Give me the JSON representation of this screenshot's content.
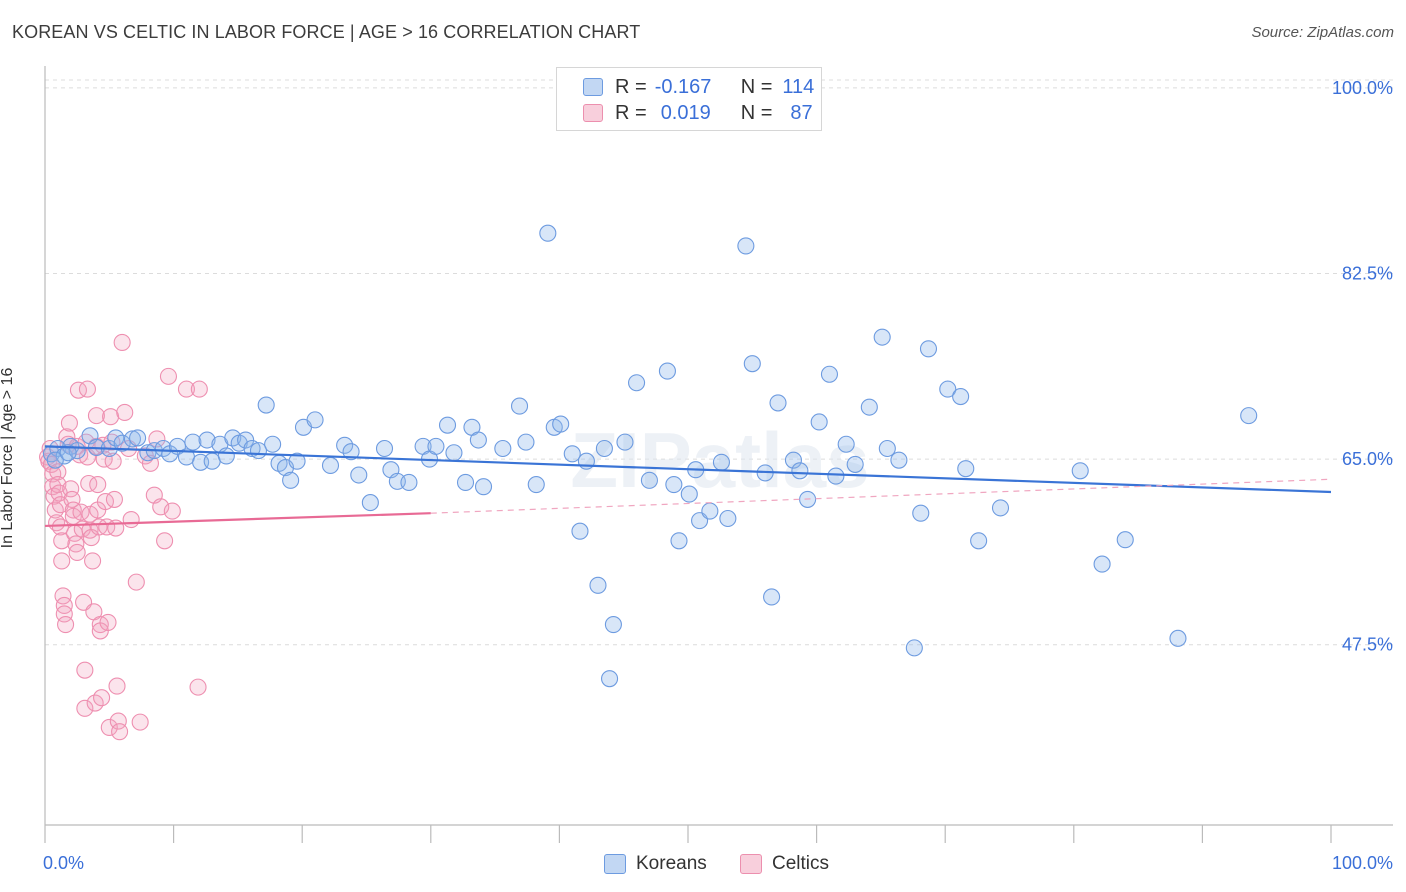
{
  "title": "KOREAN VS CELTIC IN LABOR FORCE | AGE > 16 CORRELATION CHART",
  "source": "Source: ZipAtlas.com",
  "watermark": "ZIPatlas",
  "legend": {
    "rows": [
      {
        "r_label": "R =",
        "r_value": "-0.167",
        "n_label": "N =",
        "n_value": "114",
        "color": "#8fb6ea"
      },
      {
        "r_label": "R =",
        "r_value": "0.019",
        "n_label": "N =",
        "n_value": "87",
        "color": "#f2a7c0"
      }
    ]
  },
  "bottom_legend": [
    {
      "label": "Koreans",
      "color": "#8fb6ea"
    },
    {
      "label": "Celtics",
      "color": "#f2a7c0"
    }
  ],
  "colors": {
    "korean": "#3a74d6",
    "korean_fill": "rgba(143,182,234,0.35)",
    "celtic": "#e86a95",
    "celtic_fill": "rgba(242,167,192,0.30)",
    "tick_label": "#3a6fd8"
  },
  "chart_data": {
    "type": "scatter",
    "title": "KOREAN VS CELTIC IN LABOR FORCE | AGE > 16 CORRELATION CHART",
    "xlabel": "",
    "ylabel": "In Labor Force | Age > 16",
    "x_tick_labels": [
      "0.0%",
      "100.0%"
    ],
    "y_tick_labels": [
      "47.5%",
      "65.0%",
      "82.5%",
      "100.0%"
    ],
    "y_ticks": [
      47.5,
      65.0,
      82.5,
      100.0
    ],
    "xlim": [
      0,
      100
    ],
    "ylim": [
      30.5,
      101.5
    ],
    "grid": true,
    "legend_position": "top-center",
    "series": [
      {
        "name": "Koreans",
        "r": -0.167,
        "n": 114,
        "trend": {
          "x0": 0,
          "y0": 66.2,
          "x1": 100,
          "y1": 61.9
        },
        "points": [
          [
            0.5,
            65.5
          ],
          [
            1.0,
            66.0
          ],
          [
            1.5,
            65.3
          ],
          [
            2.0,
            66.2
          ],
          [
            2.5,
            65.8
          ],
          [
            3.5,
            67.2
          ],
          [
            4.0,
            66.1
          ],
          [
            5.0,
            66.0
          ],
          [
            5.5,
            67.0
          ],
          [
            6.0,
            66.5
          ],
          [
            6.8,
            66.9
          ],
          [
            7.2,
            67.0
          ],
          [
            8.0,
            65.6
          ],
          [
            8.5,
            65.8
          ],
          [
            9.2,
            66.0
          ],
          [
            9.7,
            65.5
          ],
          [
            10.3,
            66.2
          ],
          [
            11.0,
            65.2
          ],
          [
            11.5,
            66.6
          ],
          [
            12.1,
            64.7
          ],
          [
            12.6,
            66.8
          ],
          [
            13.0,
            64.8
          ],
          [
            13.6,
            66.4
          ],
          [
            14.1,
            65.3
          ],
          [
            14.6,
            67.0
          ],
          [
            15.1,
            66.5
          ],
          [
            15.6,
            66.8
          ],
          [
            16.1,
            66.0
          ],
          [
            16.6,
            65.8
          ],
          [
            17.2,
            70.1
          ],
          [
            17.7,
            66.4
          ],
          [
            18.2,
            64.6
          ],
          [
            18.7,
            64.2
          ],
          [
            19.1,
            63.0
          ],
          [
            19.6,
            64.8
          ],
          [
            20.1,
            68.0
          ],
          [
            21.0,
            68.7
          ],
          [
            22.2,
            64.4
          ],
          [
            23.3,
            66.3
          ],
          [
            23.8,
            65.7
          ],
          [
            24.4,
            63.5
          ],
          [
            25.3,
            60.9
          ],
          [
            26.4,
            66.0
          ],
          [
            26.9,
            64.0
          ],
          [
            27.4,
            62.9
          ],
          [
            28.3,
            62.8
          ],
          [
            29.4,
            66.2
          ],
          [
            29.9,
            65.0
          ],
          [
            30.4,
            66.2
          ],
          [
            31.3,
            68.2
          ],
          [
            31.8,
            65.6
          ],
          [
            32.7,
            62.8
          ],
          [
            33.2,
            68.0
          ],
          [
            33.7,
            66.8
          ],
          [
            34.1,
            62.4
          ],
          [
            35.6,
            66.0
          ],
          [
            36.9,
            70.0
          ],
          [
            37.4,
            66.6
          ],
          [
            38.2,
            62.6
          ],
          [
            39.1,
            86.3
          ],
          [
            39.6,
            68.0
          ],
          [
            40.1,
            68.3
          ],
          [
            41.0,
            65.5
          ],
          [
            41.6,
            58.2
          ],
          [
            42.1,
            64.8
          ],
          [
            43.0,
            53.1
          ],
          [
            43.5,
            66.0
          ],
          [
            43.9,
            44.3
          ],
          [
            44.2,
            49.4
          ],
          [
            45.1,
            66.6
          ],
          [
            46.0,
            72.2
          ],
          [
            47.0,
            63.0
          ],
          [
            48.4,
            73.3
          ],
          [
            48.9,
            62.6
          ],
          [
            49.3,
            57.3
          ],
          [
            50.1,
            61.7
          ],
          [
            50.6,
            64.0
          ],
          [
            50.9,
            59.2
          ],
          [
            51.7,
            60.1
          ],
          [
            52.6,
            64.7
          ],
          [
            53.1,
            59.4
          ],
          [
            54.5,
            85.1
          ],
          [
            55.0,
            74.0
          ],
          [
            56.0,
            63.7
          ],
          [
            56.5,
            52.0
          ],
          [
            57.0,
            70.3
          ],
          [
            58.2,
            64.9
          ],
          [
            58.7,
            63.9
          ],
          [
            59.3,
            61.2
          ],
          [
            60.2,
            68.5
          ],
          [
            61.0,
            73.0
          ],
          [
            61.5,
            63.4
          ],
          [
            62.3,
            66.4
          ],
          [
            63.0,
            64.5
          ],
          [
            64.1,
            69.9
          ],
          [
            65.1,
            76.5
          ],
          [
            65.5,
            66.0
          ],
          [
            66.4,
            64.9
          ],
          [
            67.6,
            47.2
          ],
          [
            68.1,
            59.9
          ],
          [
            68.7,
            75.4
          ],
          [
            70.2,
            71.6
          ],
          [
            71.2,
            70.9
          ],
          [
            71.6,
            64.1
          ],
          [
            72.6,
            57.3
          ],
          [
            74.3,
            60.4
          ],
          [
            80.5,
            63.9
          ],
          [
            82.2,
            55.1
          ],
          [
            84.0,
            57.4
          ],
          [
            88.1,
            48.1
          ],
          [
            93.6,
            69.1
          ],
          [
            0.8,
            64.9
          ],
          [
            1.8,
            65.6
          ]
        ]
      },
      {
        "name": "Celtics",
        "r": 0.019,
        "n": 87,
        "trend": {
          "x0": 0,
          "y0": 58.7,
          "x1": 30,
          "y1": 59.9,
          "dashed_to_x": 100,
          "dashed_to_y": 63.1
        },
        "points": [
          [
            0.2,
            65.2
          ],
          [
            0.3,
            64.8
          ],
          [
            0.4,
            66.0
          ],
          [
            0.5,
            64.5
          ],
          [
            0.6,
            63.6
          ],
          [
            0.6,
            62.4
          ],
          [
            0.7,
            61.5
          ],
          [
            0.8,
            60.2
          ],
          [
            0.9,
            59.0
          ],
          [
            1.0,
            63.8
          ],
          [
            1.0,
            62.6
          ],
          [
            1.1,
            61.8
          ],
          [
            1.2,
            60.7
          ],
          [
            1.2,
            58.6
          ],
          [
            1.3,
            57.3
          ],
          [
            1.3,
            55.4
          ],
          [
            1.4,
            52.1
          ],
          [
            1.5,
            51.2
          ],
          [
            1.5,
            50.4
          ],
          [
            1.6,
            49.4
          ],
          [
            1.7,
            67.1
          ],
          [
            1.8,
            66.4
          ],
          [
            1.9,
            68.4
          ],
          [
            2.0,
            62.2
          ],
          [
            2.1,
            61.2
          ],
          [
            2.2,
            60.2
          ],
          [
            2.2,
            59.6
          ],
          [
            2.3,
            58.0
          ],
          [
            2.4,
            57.0
          ],
          [
            2.5,
            56.2
          ],
          [
            2.5,
            66.2
          ],
          [
            2.6,
            71.5
          ],
          [
            2.7,
            65.4
          ],
          [
            2.8,
            60.0
          ],
          [
            2.9,
            58.4
          ],
          [
            3.0,
            51.5
          ],
          [
            3.1,
            45.1
          ],
          [
            3.1,
            41.5
          ],
          [
            3.2,
            66.6
          ],
          [
            3.3,
            71.6
          ],
          [
            3.3,
            65.2
          ],
          [
            3.4,
            62.7
          ],
          [
            3.5,
            59.8
          ],
          [
            3.5,
            58.3
          ],
          [
            3.6,
            57.6
          ],
          [
            3.7,
            55.4
          ],
          [
            3.8,
            50.6
          ],
          [
            3.9,
            42.0
          ],
          [
            4.0,
            69.1
          ],
          [
            4.0,
            66.2
          ],
          [
            4.1,
            62.6
          ],
          [
            4.1,
            60.2
          ],
          [
            4.2,
            58.6
          ],
          [
            4.3,
            49.4
          ],
          [
            4.3,
            48.8
          ],
          [
            4.4,
            42.5
          ],
          [
            4.5,
            66.3
          ],
          [
            4.6,
            65.0
          ],
          [
            4.7,
            61.0
          ],
          [
            4.8,
            58.6
          ],
          [
            4.9,
            49.6
          ],
          [
            5.0,
            39.7
          ],
          [
            5.1,
            69.0
          ],
          [
            5.2,
            66.6
          ],
          [
            5.3,
            64.8
          ],
          [
            5.4,
            61.2
          ],
          [
            5.5,
            58.5
          ],
          [
            5.6,
            43.6
          ],
          [
            5.7,
            40.3
          ],
          [
            5.8,
            39.3
          ],
          [
            6.0,
            76.0
          ],
          [
            6.2,
            69.4
          ],
          [
            6.5,
            66.0
          ],
          [
            6.7,
            59.3
          ],
          [
            7.1,
            53.4
          ],
          [
            7.4,
            40.2
          ],
          [
            7.8,
            65.3
          ],
          [
            8.2,
            64.6
          ],
          [
            8.5,
            61.6
          ],
          [
            8.7,
            66.9
          ],
          [
            9.0,
            60.5
          ],
          [
            9.3,
            57.3
          ],
          [
            9.6,
            72.8
          ],
          [
            9.9,
            60.1
          ],
          [
            11.0,
            71.6
          ],
          [
            12.0,
            71.6
          ],
          [
            11.9,
            43.5
          ]
        ]
      }
    ]
  }
}
